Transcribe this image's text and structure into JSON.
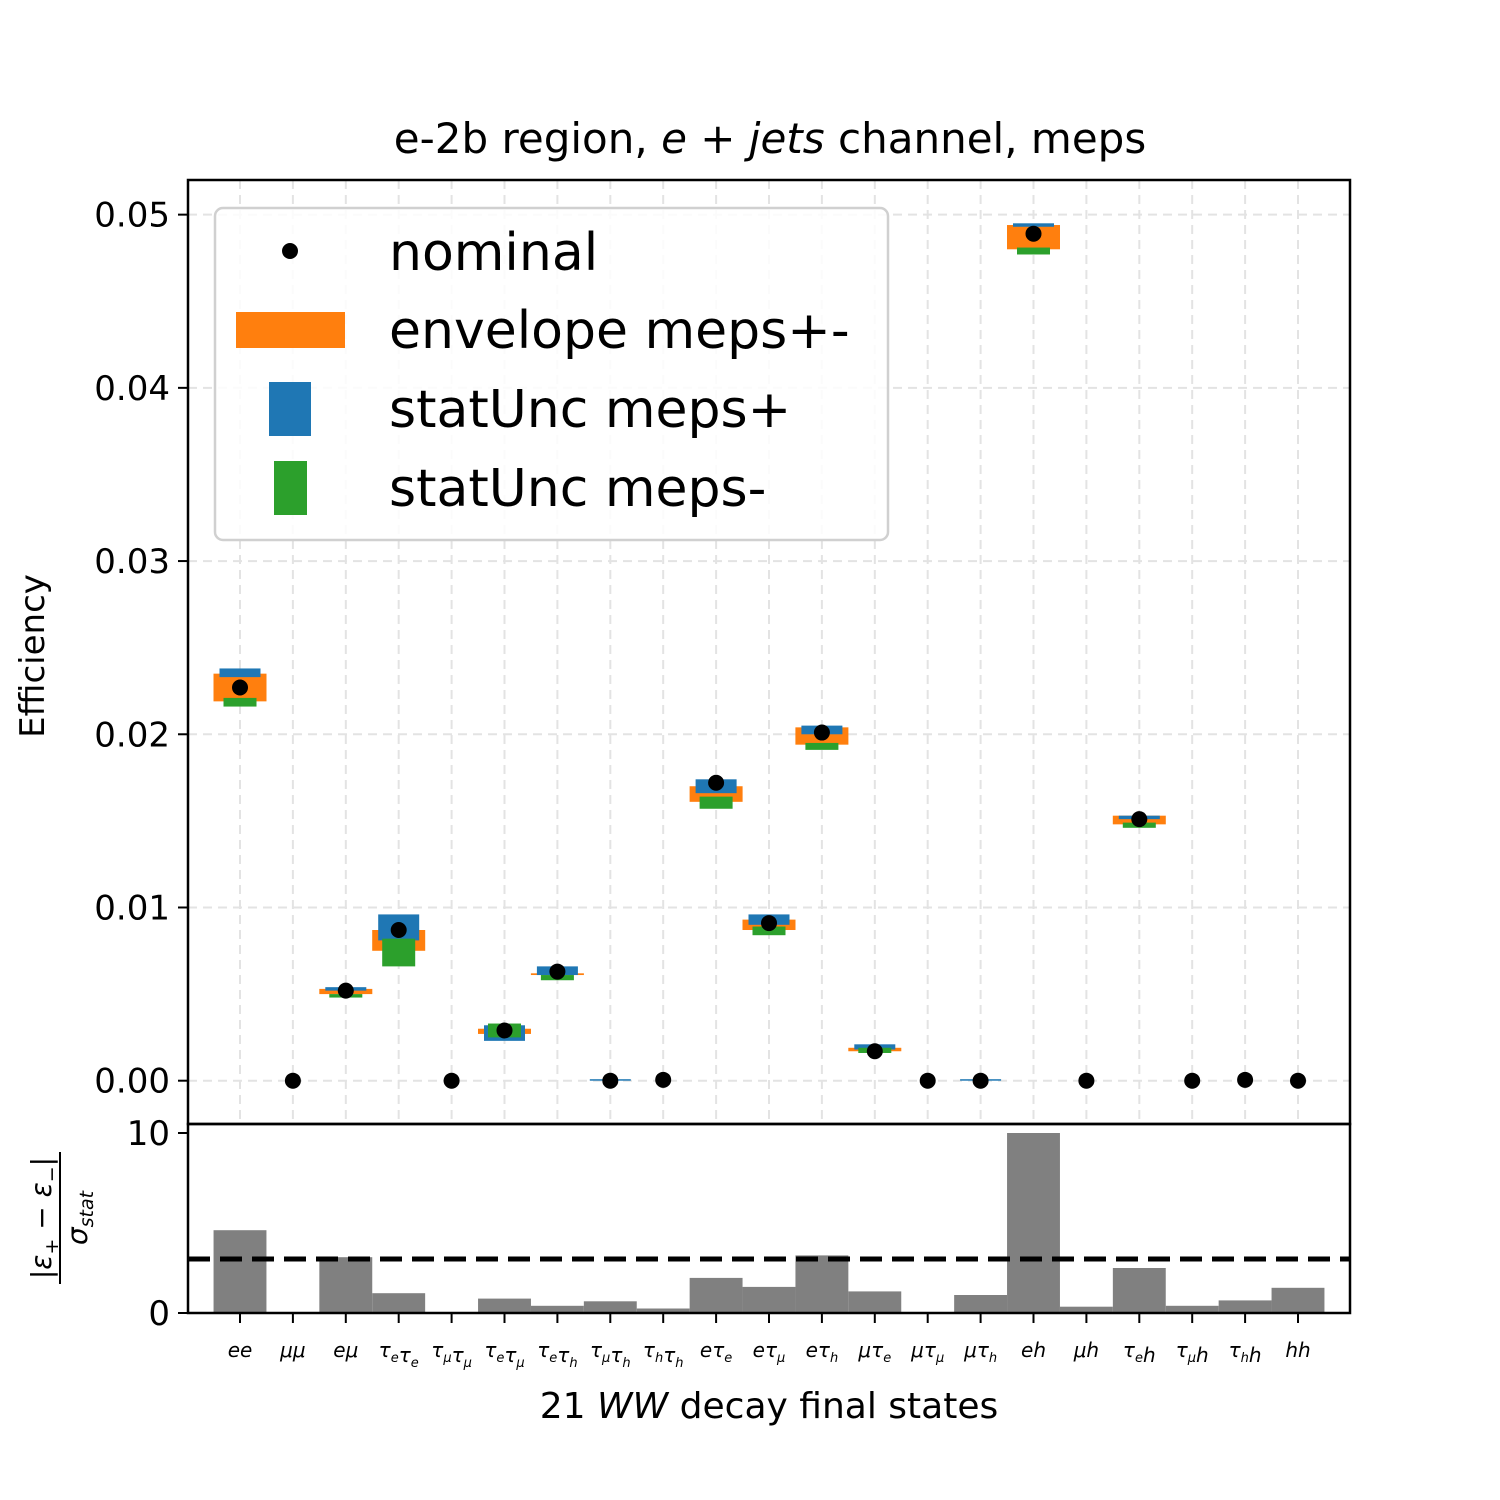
{
  "chart_data": [
    {
      "type": "scatter",
      "title": "e-2b region, e + jets channel, meps",
      "title_parts": [
        "e-2b region, ",
        "e + jets",
        " channel, meps"
      ],
      "ylabel": "Efficiency",
      "ylim": [
        -0.0025,
        0.052
      ],
      "yticks": [
        "0.00",
        "0.01",
        "0.02",
        "0.03",
        "0.04",
        "0.05"
      ],
      "grid": true,
      "legend_position": "upper-left",
      "categories": [
        "ee",
        "μμ",
        "eμ",
        "τeτe",
        "τμτμ",
        "τeτμ",
        "τeτh",
        "τμτh",
        "τhτh",
        "eτe",
        "eτμ",
        "eτh",
        "μτe",
        "μτμ",
        "μτh",
        "eh",
        "μh",
        "τeh",
        "τμh",
        "τhh",
        "hh"
      ],
      "series": [
        {
          "name": "nominal",
          "color": "#000000",
          "values": [
            0.0227,
            0,
            0.0052,
            0.0087,
            0,
            0.0029,
            0.0063,
            0,
            5e-05,
            0.0172,
            0.0091,
            0.0201,
            0.0017,
            0,
            0,
            0.0489,
            0,
            0.0151,
            0,
            5e-05,
            0
          ]
        },
        {
          "name": "envelope meps+-",
          "color": "#ff7f0e",
          "low": [
            0.0219,
            0,
            0.005,
            0.0075,
            0,
            0.0027,
            0.0061,
            0,
            0,
            0.0161,
            0.0087,
            0.0194,
            0.0017,
            0,
            0,
            0.048,
            0,
            0.0148,
            0,
            0,
            0
          ],
          "high": [
            0.0235,
            0,
            0.0053,
            0.0087,
            0,
            0.003,
            0.0062,
            0,
            0,
            0.017,
            0.0093,
            0.0204,
            0.0019,
            0,
            0,
            0.0494,
            0,
            0.0153,
            0,
            0,
            0
          ]
        },
        {
          "name": "statUnc meps+",
          "color": "#1f77b4",
          "low": [
            0.0233,
            0,
            0.0052,
            0.0081,
            0,
            0.0023,
            0.0061,
            0,
            0,
            0.0166,
            0.009,
            0.02,
            0.0018,
            0,
            0,
            0.0493,
            0,
            0.0151,
            0,
            0,
            0
          ],
          "high": [
            0.0238,
            0,
            0.0054,
            0.0096,
            0,
            0.0032,
            0.0066,
            8e-05,
            0,
            0.0174,
            0.0096,
            0.0205,
            0.0021,
            0,
            5e-05,
            0.0495,
            0,
            0.0153,
            0,
            0,
            0
          ]
        },
        {
          "name": "statUnc meps-",
          "color": "#2ca02c",
          "low": [
            0.0216,
            0,
            0.0048,
            0.0066,
            0,
            0.0025,
            0.0058,
            0,
            0,
            0.0157,
            0.0084,
            0.0191,
            0.0016,
            0,
            0,
            0.0477,
            0,
            0.0146,
            0,
            0,
            0
          ],
          "high": [
            0.0221,
            0,
            0.005,
            0.0082,
            0,
            0.0033,
            0.0061,
            0,
            0,
            0.0164,
            0.0089,
            0.0195,
            0.0019,
            0,
            0,
            0.0481,
            0,
            0.0149,
            0,
            0,
            0
          ]
        }
      ]
    },
    {
      "type": "bar",
      "ylabel": "|ε+ − ε−| / σstat",
      "xlabel": "21 WW decay final states",
      "xlabel_parts": [
        "21 ",
        "WW",
        " decay final states"
      ],
      "ylim": [
        0,
        10
      ],
      "yticks": [
        "0",
        "10"
      ],
      "threshold": 3,
      "bar_color": "#808080",
      "categories": [
        "ee",
        "μμ",
        "eμ",
        "τeτe",
        "τμτμ",
        "τeτμ",
        "τeτh",
        "τμτh",
        "τhτh",
        "eτe",
        "eτμ",
        "eτh",
        "μτe",
        "μτμ",
        "μτh",
        "eh",
        "μh",
        "τeh",
        "τμh",
        "τhh",
        "hh"
      ],
      "values": [
        4.6,
        0.05,
        3.1,
        1.1,
        0,
        0.8,
        0.4,
        0.65,
        0.25,
        1.95,
        1.45,
        3.2,
        1.2,
        0,
        1.0,
        10.0,
        0.35,
        2.5,
        0.4,
        0.7,
        1.4
      ]
    }
  ]
}
